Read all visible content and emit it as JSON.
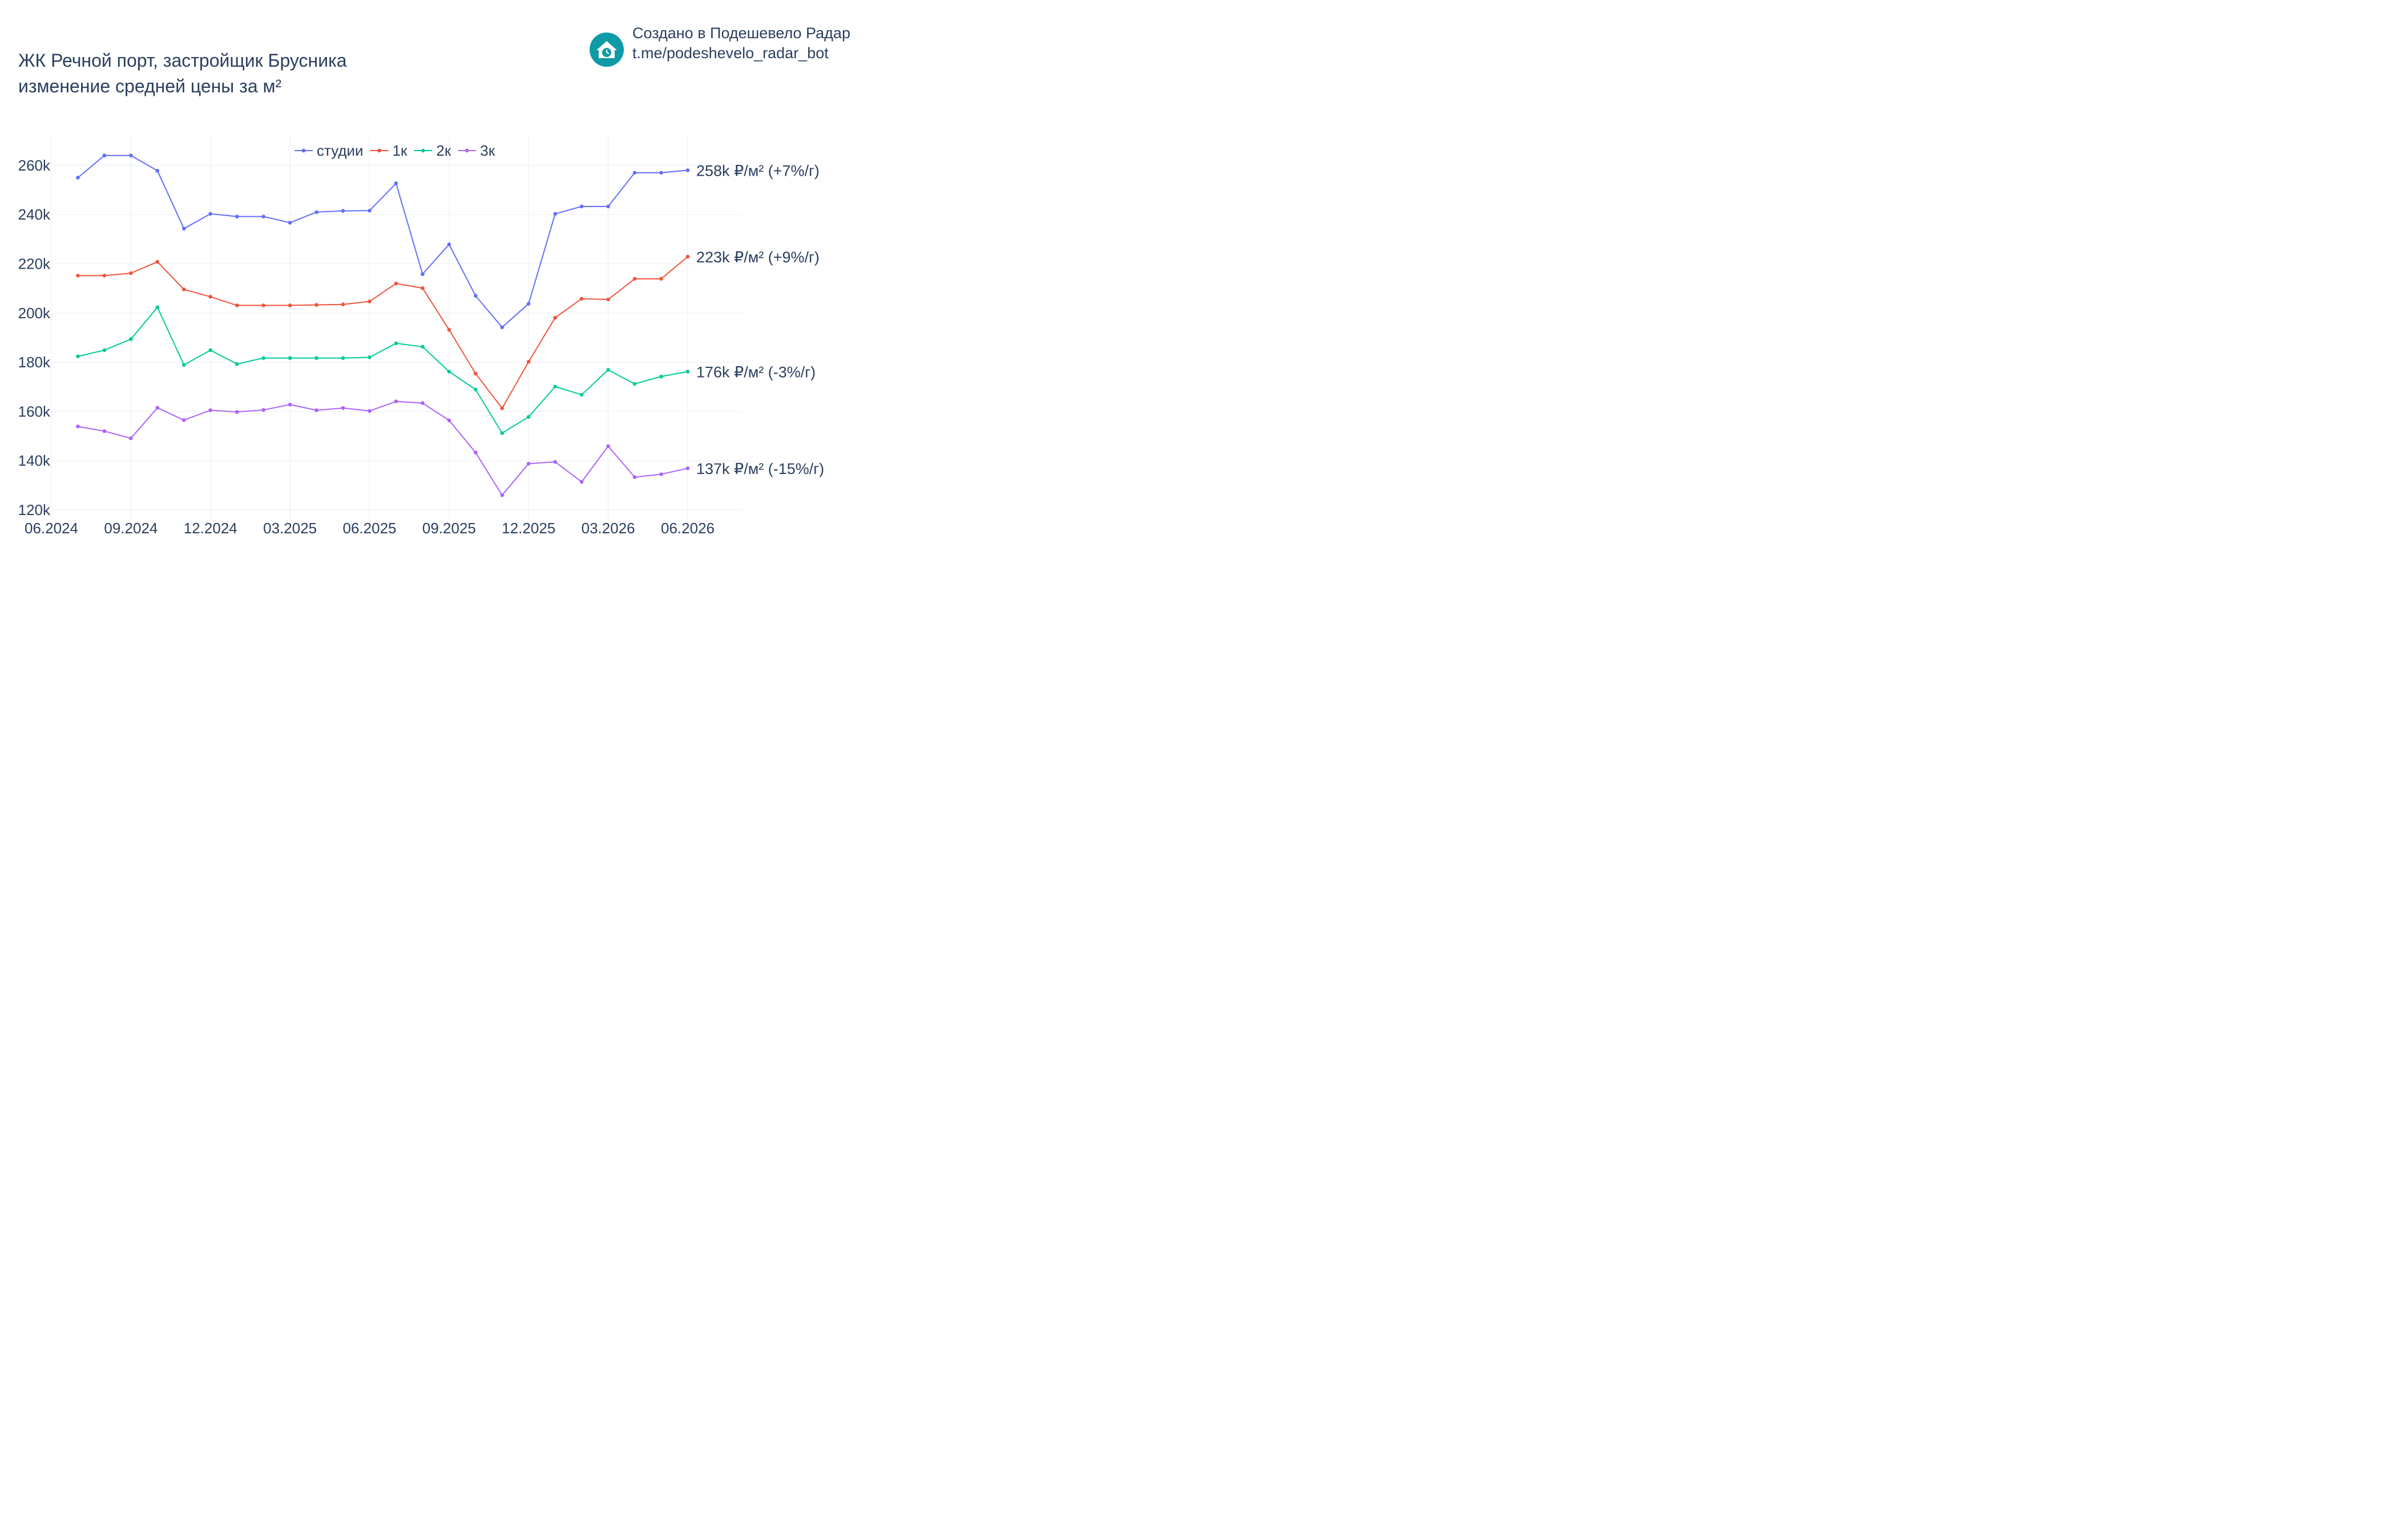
{
  "title": {
    "line1": "ЖК Речной порт, застройщик Брусника",
    "line2": "изменение средней цены за м²"
  },
  "brand": {
    "icon": "house-clock-icon",
    "icon_color": "#0e9aa7",
    "line1": "Создано в Подешевело Радар",
    "line2": "t.me/podeshevelo_radar_bot"
  },
  "chart_data": {
    "type": "line",
    "x_ticks": [
      "06.2024",
      "09.2024",
      "12.2024",
      "03.2025",
      "06.2025",
      "09.2025",
      "12.2025",
      "03.2026",
      "06.2026"
    ],
    "y_ticks": [
      "120k",
      "140k",
      "160k",
      "180k",
      "200k",
      "220k",
      "240k",
      "260k"
    ],
    "ylim": [
      118000,
      272000
    ],
    "x": [
      "07.2024",
      "08.2024",
      "09.2024",
      "10.2024",
      "11.2024",
      "12.2024",
      "01.2025",
      "02.2025",
      "03.2025",
      "04.2025",
      "05.2025",
      "06.2025",
      "07.2025",
      "08.2025",
      "09.2025",
      "10.2025",
      "11.2025",
      "12.2025",
      "01.2026",
      "02.2026",
      "03.2026",
      "04.2026",
      "05.2026",
      "06.2026"
    ],
    "legend_position": "top-center",
    "grid": true,
    "series": [
      {
        "name": "студии",
        "color": "#636efa",
        "end_label": "258k ₽/м² (+7%/г)",
        "values": [
          255000,
          264000,
          264000,
          257800,
          234300,
          240300,
          239200,
          239200,
          236700,
          241000,
          241500,
          241600,
          252700,
          215800,
          227900,
          207000,
          194200,
          203800,
          240300,
          243300,
          243300,
          257000,
          257000,
          258000
        ]
      },
      {
        "name": "1к",
        "color": "#ef553b",
        "end_label": "223k ₽/м² (+9%/г)",
        "values": [
          215200,
          215200,
          216200,
          220800,
          209600,
          206600,
          203100,
          203100,
          203100,
          203300,
          203500,
          204700,
          212000,
          210100,
          193200,
          175400,
          161300,
          180200,
          198100,
          205800,
          205500,
          213900,
          213900,
          222900
        ]
      },
      {
        "name": "2к",
        "color": "#00cc96",
        "end_label": "176k ₽/м² (-3%/г)",
        "values": [
          182400,
          184900,
          189400,
          202300,
          178900,
          184900,
          179300,
          181700,
          181700,
          181700,
          181700,
          182000,
          187700,
          186300,
          176200,
          168900,
          151200,
          157800,
          170100,
          166800,
          176900,
          171200,
          174200,
          176200
        ]
      },
      {
        "name": "3к",
        "color": "#ab63fa",
        "end_label": "137k ₽/м² (-15%/г)",
        "values": [
          153900,
          152000,
          149100,
          161500,
          156500,
          160500,
          159800,
          160600,
          162800,
          160500,
          161400,
          160200,
          164100,
          163400,
          156400,
          143300,
          126000,
          138800,
          139500,
          131400,
          145900,
          133300,
          134500,
          136900
        ]
      }
    ]
  }
}
